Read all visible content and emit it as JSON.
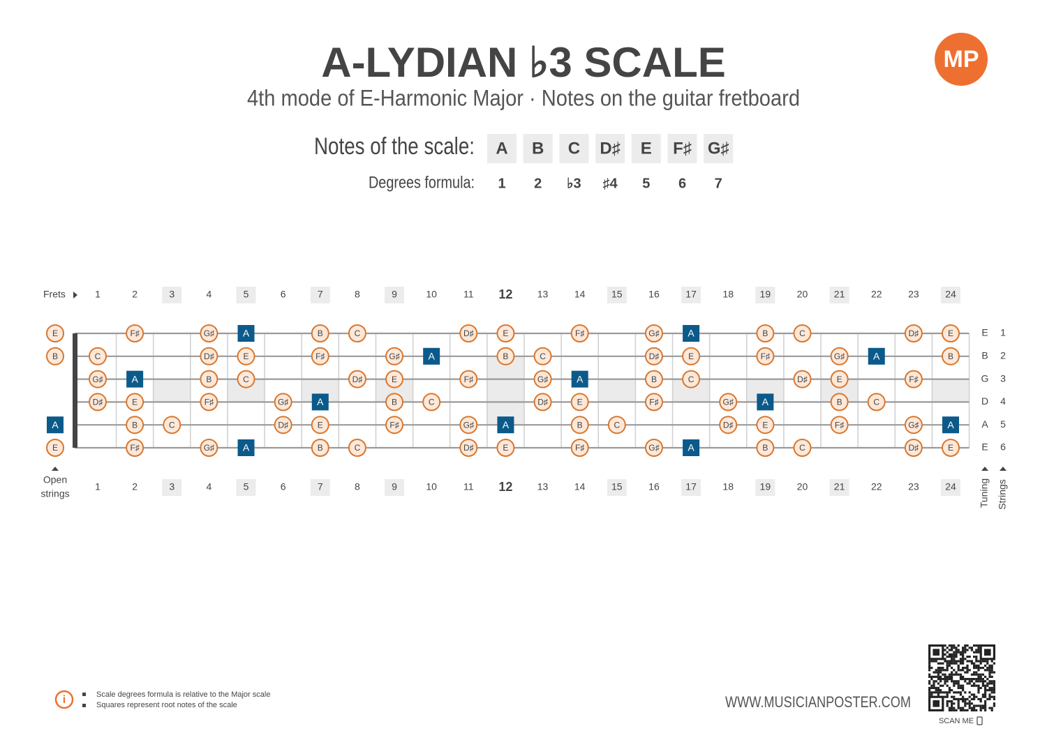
{
  "header": {
    "title": "A-LYDIAN ♭3 SCALE",
    "subtitle": "4th mode of E-Harmonic Major  ·  Notes on the guitar fretboard",
    "logo": "MP"
  },
  "scale": {
    "notes_label": "Notes of the scale:",
    "notes": [
      "A",
      "B",
      "C",
      "D♯",
      "E",
      "F♯",
      "G♯"
    ],
    "degrees_label": "Degrees formula:",
    "degrees": [
      "1",
      "2",
      "♭3",
      "♯4",
      "5",
      "6",
      "7"
    ]
  },
  "fretboard": {
    "frets_label": "Frets",
    "open_strings_label": [
      "Open",
      "strings"
    ],
    "tuning_label": "Tuning",
    "strings_label": "Strings",
    "fret_numbers": [
      1,
      2,
      3,
      4,
      5,
      6,
      7,
      8,
      9,
      10,
      11,
      12,
      13,
      14,
      15,
      16,
      17,
      18,
      19,
      20,
      21,
      22,
      23,
      24
    ],
    "marker_frets": [
      3,
      5,
      7,
      9,
      15,
      17,
      19,
      21,
      24
    ],
    "double_marker_frets": [
      12
    ],
    "strings": [
      {
        "tuning": "E",
        "number": 1,
        "notes": [
          "E",
          null,
          "F♯",
          null,
          "G♯",
          "A",
          null,
          "B",
          "C",
          null,
          null,
          "D♯",
          "E",
          null,
          "F♯",
          null,
          "G♯",
          "A",
          null,
          "B",
          "C",
          null,
          null,
          "D♯",
          "E"
        ]
      },
      {
        "tuning": "B",
        "number": 2,
        "notes": [
          "B",
          "C",
          null,
          null,
          "D♯",
          "E",
          null,
          "F♯",
          null,
          "G♯",
          "A",
          null,
          "B",
          "C",
          null,
          null,
          "D♯",
          "E",
          null,
          "F♯",
          null,
          "G♯",
          "A",
          null,
          "B"
        ]
      },
      {
        "tuning": "G",
        "number": 3,
        "notes": [
          null,
          "G♯",
          "A",
          null,
          "B",
          "C",
          null,
          null,
          "D♯",
          "E",
          null,
          "F♯",
          null,
          "G♯",
          "A",
          null,
          "B",
          "C",
          null,
          null,
          "D♯",
          "E",
          null,
          "F♯",
          null
        ]
      },
      {
        "tuning": "D",
        "number": 4,
        "notes": [
          null,
          "D♯",
          "E",
          null,
          "F♯",
          null,
          "G♯",
          "A",
          null,
          "B",
          "C",
          null,
          null,
          "D♯",
          "E",
          null,
          "F♯",
          null,
          "G♯",
          "A",
          null,
          "B",
          "C",
          null,
          null
        ]
      },
      {
        "tuning": "A",
        "number": 5,
        "notes": [
          "A",
          null,
          "B",
          "C",
          null,
          null,
          "D♯",
          "E",
          null,
          "F♯",
          null,
          "G♯",
          "A",
          null,
          "B",
          "C",
          null,
          null,
          "D♯",
          "E",
          null,
          "F♯",
          null,
          "G♯",
          "A"
        ]
      },
      {
        "tuning": "E",
        "number": 6,
        "notes": [
          "E",
          null,
          "F♯",
          null,
          "G♯",
          "A",
          null,
          "B",
          "C",
          null,
          null,
          "D♯",
          "E",
          null,
          "F♯",
          null,
          "G♯",
          "A",
          null,
          "B",
          "C",
          null,
          null,
          "D♯",
          "E"
        ]
      }
    ]
  },
  "footer": {
    "notes": [
      "Scale degrees formula is relative to the Major scale",
      "Squares represent root notes of the scale"
    ],
    "website": "WWW.MUSICIANPOSTER.COM",
    "scan": "SCAN ME"
  }
}
